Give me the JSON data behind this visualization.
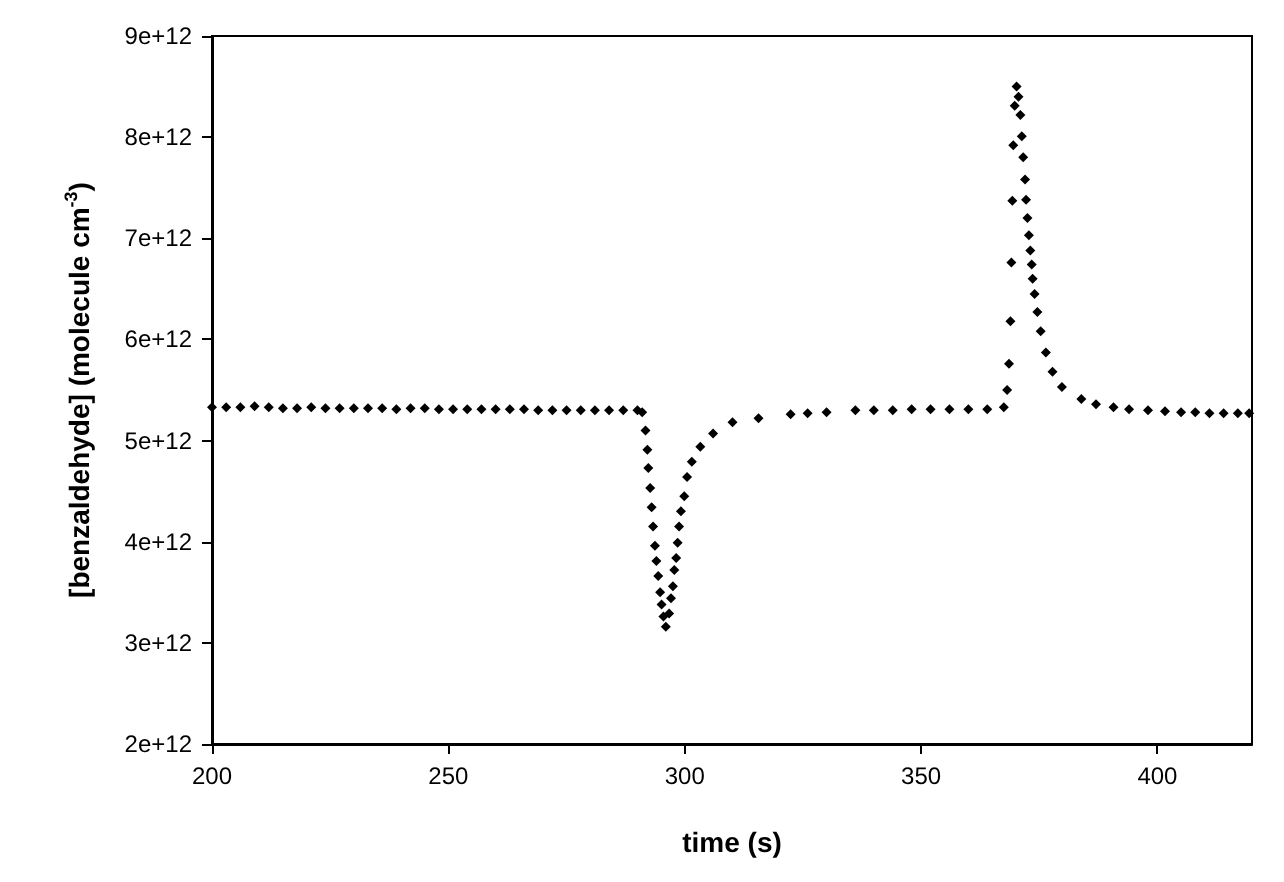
{
  "chart_data": {
    "type": "scatter",
    "xlabel": "time (s)",
    "ylabel": "[benzaldehyde] (molecule cm$^{-3}$)",
    "marker": "diamond",
    "xlim": [
      200,
      420
    ],
    "xticks": [
      200,
      250,
      300,
      350,
      400
    ],
    "ylim": [
      2000000000000.0,
      9000000000000.0
    ],
    "yticks": [
      {
        "value": 2000000000000.0,
        "label": "2e+12"
      },
      {
        "value": 3000000000000.0,
        "label": "3e+12"
      },
      {
        "value": 4000000000000.0,
        "label": "4e+12"
      },
      {
        "value": 5000000000000.0,
        "label": "5e+12"
      },
      {
        "value": 6000000000000.0,
        "label": "6e+12"
      },
      {
        "value": 7000000000000.0,
        "label": "7e+12"
      },
      {
        "value": 8000000000000.0,
        "label": "8e+12"
      },
      {
        "value": 9000000000000.0,
        "label": "9e+12"
      }
    ],
    "series": [
      {
        "color": "#000000",
        "x": [
          200,
          203,
          206,
          209,
          212,
          215,
          218,
          221,
          224,
          227,
          230,
          233,
          236,
          239,
          242,
          245,
          248,
          251,
          254,
          257,
          260,
          263,
          266,
          269,
          272,
          275,
          278,
          281,
          284,
          287,
          290,
          291.0,
          291.7,
          292.1,
          292.3,
          292.7,
          293.0,
          293.3,
          293.7,
          294.0,
          294.4,
          294.8,
          295.1,
          295.5,
          296.0,
          296.7,
          297.1,
          297.5,
          297.8,
          298.2,
          298.5,
          298.8,
          299.2,
          299.9,
          300.5,
          301.5,
          303.3,
          306.0,
          310.1,
          315.6,
          322.4,
          326,
          330,
          336.1,
          340,
          344,
          348,
          352,
          356,
          360,
          364,
          367.5,
          368.2,
          368.6,
          368.9,
          369.1,
          369.3,
          369.5,
          369.8,
          370.2,
          370.6,
          371.0,
          371.3,
          371.6,
          372.0,
          372.2,
          372.5,
          372.8,
          373.1,
          373.4,
          373.6,
          374.0,
          374.6,
          375.3,
          376.4,
          377.8,
          379.8,
          383.9,
          387,
          390.7,
          394,
          398,
          401.6,
          405,
          408,
          411,
          414,
          417,
          419.4
        ],
        "values": [
          5330000000000.0,
          5330000000000.0,
          5330000000000.0,
          5340000000000.0,
          5330000000000.0,
          5320000000000.0,
          5320000000000.0,
          5330000000000.0,
          5320000000000.0,
          5320000000000.0,
          5320000000000.0,
          5320000000000.0,
          5320000000000.0,
          5310000000000.0,
          5320000000000.0,
          5320000000000.0,
          5310000000000.0,
          5310000000000.0,
          5310000000000.0,
          5310000000000.0,
          5310000000000.0,
          5310000000000.0,
          5310000000000.0,
          5300000000000.0,
          5300000000000.0,
          5300000000000.0,
          5300000000000.0,
          5300000000000.0,
          5300000000000.0,
          5300000000000.0,
          5300000000000.0,
          5280000000000.0,
          5100000000000.0,
          4910000000000.0,
          4730000000000.0,
          4530000000000.0,
          4340000000000.0,
          4150000000000.0,
          3960000000000.0,
          3810000000000.0,
          3660000000000.0,
          3500000000000.0,
          3380000000000.0,
          3260000000000.0,
          3160000000000.0,
          3290000000000.0,
          3440000000000.0,
          3560000000000.0,
          3720000000000.0,
          3840000000000.0,
          3990000000000.0,
          4150000000000.0,
          4300000000000.0,
          4450000000000.0,
          4640000000000.0,
          4790000000000.0,
          4940000000000.0,
          5070000000000.0,
          5180000000000.0,
          5220000000000.0,
          5260000000000.0,
          5270000000000.0,
          5280000000000.0,
          5300000000000.0,
          5300000000000.0,
          5300000000000.0,
          5310000000000.0,
          5310000000000.0,
          5310000000000.0,
          5310000000000.0,
          5310000000000.0,
          5330000000000.0,
          5500000000000.0,
          5760000000000.0,
          6180000000000.0,
          6760000000000.0,
          7370000000000.0,
          7920000000000.0,
          8310000000000.0,
          8500000000000.0,
          8400000000000.0,
          8220000000000.0,
          8010000000000.0,
          7800000000000.0,
          7580000000000.0,
          7380000000000.0,
          7200000000000.0,
          7030000000000.0,
          6880000000000.0,
          6740000000000.0,
          6600000000000.0,
          6450000000000.0,
          6270000000000.0,
          6080000000000.0,
          5870000000000.0,
          5680000000000.0,
          5530000000000.0,
          5410000000000.0,
          5360000000000.0,
          5330000000000.0,
          5310000000000.0,
          5300000000000.0,
          5290000000000.0,
          5280000000000.0,
          5280000000000.0,
          5270000000000.0,
          5270000000000.0,
          5270000000000.0,
          5270000000000.0
        ]
      }
    ]
  }
}
